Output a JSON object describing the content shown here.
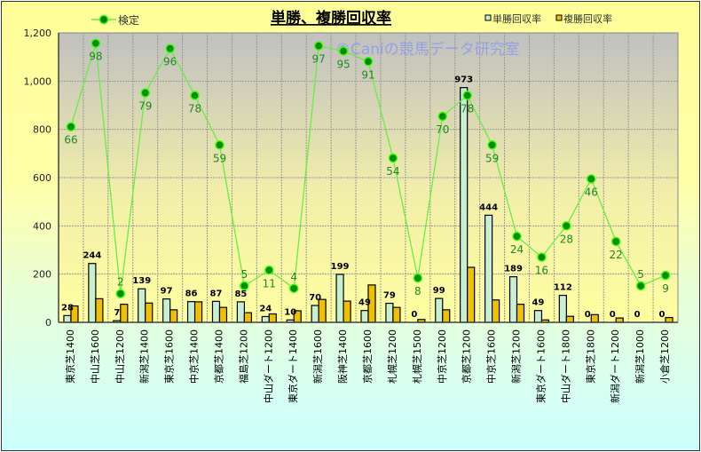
{
  "chart_data": {
    "type": "bar+line",
    "title": "単勝、複勝回収率",
    "watermark": "©Caniの競馬データ研究室",
    "categories": [
      "東京芝1400",
      "中山芝1600",
      "中山芝1200",
      "新潟芝1400",
      "東京芝1600",
      "中京芝1400",
      "京都芝1400",
      "福島芝1200",
      "中山ダート1200",
      "東京ダート1400",
      "新潟芝1600",
      "阪神芝1400",
      "京都芝1600",
      "札幌芝1200",
      "札幌芝1500",
      "中京芝1200",
      "京都芝1200",
      "中京芝1600",
      "新潟芝1200",
      "東京ダート1600",
      "中山ダート1800",
      "東京芝1800",
      "新潟ダート1200",
      "新潟芝1000",
      "小倉芝1200"
    ],
    "series": [
      {
        "name": "単勝回収率",
        "type": "bar",
        "color": "#c8f0d0",
        "labels": true,
        "values": [
          28,
          244,
          7,
          139,
          97,
          86,
          87,
          85,
          24,
          10,
          70,
          199,
          49,
          79,
          0,
          99,
          973,
          444,
          189,
          49,
          112,
          0,
          0,
          0,
          0
        ]
      },
      {
        "name": "複勝回収率",
        "type": "bar",
        "color": "#f0c000",
        "labels": false,
        "values": [
          68,
          98,
          75,
          80,
          52,
          85,
          62,
          40,
          35,
          48,
          95,
          88,
          155,
          62,
          12,
          52,
          228,
          93,
          75,
          10,
          25,
          32,
          18,
          0,
          20
        ]
      },
      {
        "name": "検定",
        "type": "line",
        "axis": "secondary",
        "color": "#008800",
        "line_color": "#66ee44",
        "labels": true,
        "values": [
          66,
          98,
          2,
          79,
          96,
          78,
          59,
          5,
          11,
          4,
          97,
          95,
          91,
          54,
          8,
          70,
          78,
          59,
          24,
          16,
          28,
          46,
          22,
          5,
          9
        ]
      }
    ],
    "ylim": [
      0,
      1200
    ],
    "yticks": [
      "0",
      "200",
      "400",
      "600",
      "800",
      "1,000",
      "1,200"
    ],
    "y2lim": [
      -9,
      102
    ],
    "grid": true,
    "legend_position": "top"
  }
}
